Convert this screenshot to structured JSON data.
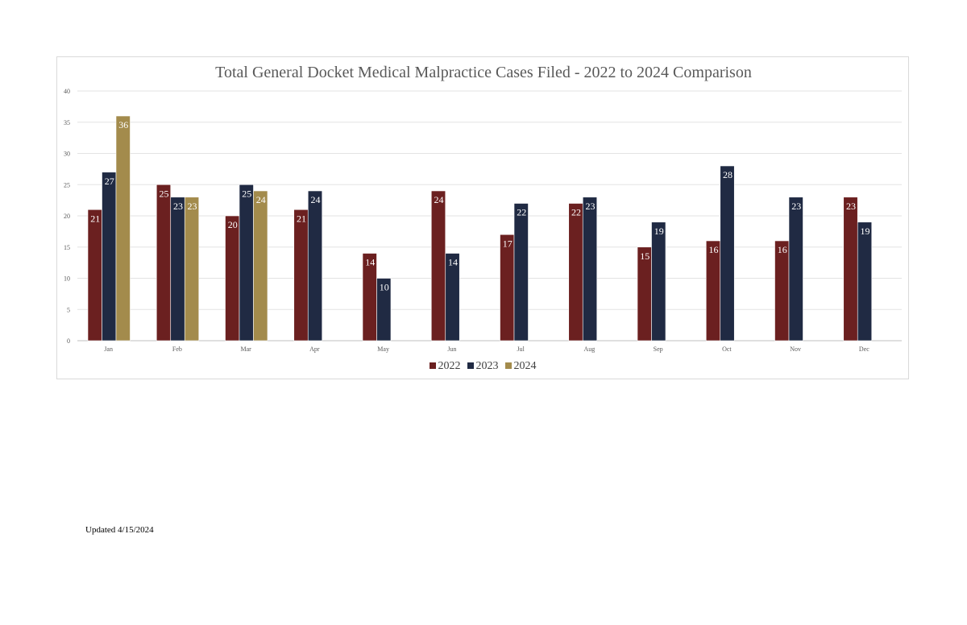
{
  "chart_data": {
    "type": "bar",
    "title": "Total General Docket Medical Malpractice Cases Filed - 2022 to 2024 Comparison",
    "categories": [
      "Jan",
      "Feb",
      "Mar",
      "Apr",
      "May",
      "Jun",
      "Jul",
      "Aug",
      "Sep",
      "Oct",
      "Nov",
      "Dec"
    ],
    "series": [
      {
        "name": "2022",
        "color": "#6b2020",
        "values": [
          21,
          25,
          20,
          21,
          14,
          24,
          17,
          22,
          15,
          16,
          16,
          23
        ]
      },
      {
        "name": "2023",
        "color": "#202a43",
        "values": [
          27,
          23,
          25,
          24,
          10,
          14,
          22,
          23,
          19,
          28,
          23,
          19
        ]
      },
      {
        "name": "2024",
        "color": "#a38b4c",
        "values": [
          36,
          23,
          24,
          null,
          null,
          null,
          null,
          null,
          null,
          null,
          null,
          null
        ]
      }
    ],
    "ylim": [
      0,
      40
    ],
    "yticks": [
      0,
      5,
      10,
      15,
      20,
      25,
      30,
      35,
      40
    ],
    "grid": true,
    "legend_position": "bottom",
    "data_labels": true
  },
  "footer": {
    "note": "Updated 4/15/2024"
  }
}
